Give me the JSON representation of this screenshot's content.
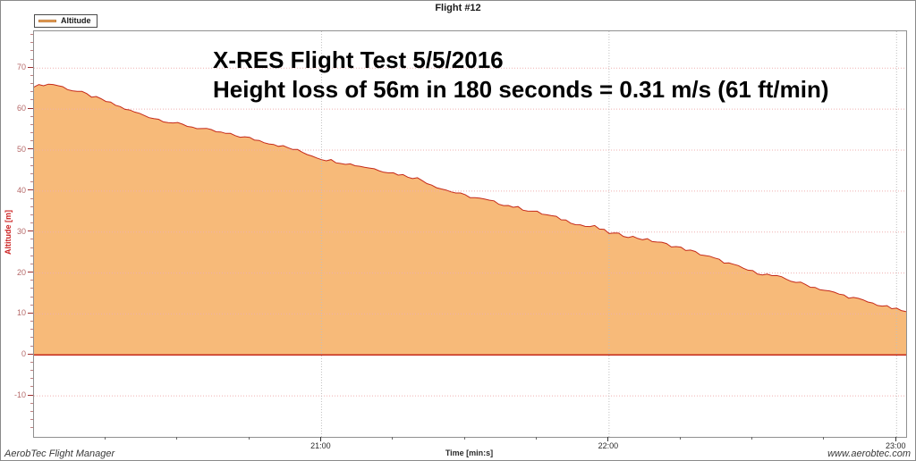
{
  "window": {
    "title": "Flight #12"
  },
  "legend": {
    "label": "Altitude"
  },
  "annotation": {
    "line1": "X-RES Flight Test 5/5/2016",
    "line2": "Height loss of 56m in 180 seconds = 0.31 m/s (61 ft/min)"
  },
  "footer": {
    "left": "AerobTec Flight Manager",
    "right": "www.aerobtec.com"
  },
  "colors": {
    "area_fill": "#F7BA79",
    "series_line": "#C52A1A",
    "h_grid": "#EFAFAF",
    "v_grid": "#BFBFBF",
    "y_tick": "#A03030",
    "y_tick_minor": "#C08080",
    "x_tick": "#333333",
    "y_label_text": "#B56A6A",
    "axis_title_red": "#CC2222"
  },
  "chart_data": {
    "type": "area",
    "title": "Flight #12",
    "xlabel": "Time [min:s]",
    "ylabel": "Altitude [m]",
    "legend_position": "top-left",
    "grid": "dotted",
    "x_start_label": "20:00",
    "x_end_label": "23:02",
    "x_total_seconds": 182,
    "x_major_tick_seconds": [
      60,
      120,
      180
    ],
    "x_major_tick_labels": [
      "21:00",
      "22:00",
      "23:00"
    ],
    "x_minor_tick_interval_seconds": 15,
    "ylim": [
      -20,
      79
    ],
    "y_major_ticks": [
      70,
      60,
      50,
      40,
      30,
      20,
      10,
      0,
      -10
    ],
    "y_minor_tick_interval": 2,
    "series": [
      {
        "name": "Altitude",
        "baseline": 0,
        "t_seconds": [
          0,
          2,
          4,
          6,
          8,
          10,
          15,
          20,
          25,
          30,
          35,
          40,
          45,
          50,
          55,
          60,
          65,
          70,
          75,
          80,
          85,
          90,
          95,
          100,
          105,
          110,
          115,
          117,
          120,
          125,
          130,
          135,
          140,
          145,
          150,
          155,
          160,
          165,
          170,
          175,
          180,
          182
        ],
        "altitude_m": [
          65.4,
          66.0,
          66.1,
          65.4,
          64.6,
          64.0,
          61.9,
          59.6,
          57.8,
          56.4,
          55.2,
          54.0,
          52.9,
          51.5,
          49.9,
          47.9,
          46.8,
          45.7,
          44.4,
          43.1,
          40.6,
          38.9,
          37.6,
          36.2,
          34.8,
          33.2,
          31.4,
          31.3,
          29.8,
          28.8,
          27.6,
          26.1,
          24.3,
          22.3,
          20.3,
          19.1,
          17.5,
          15.8,
          14.2,
          12.6,
          11.1,
          10.6
        ]
      }
    ],
    "summary": {
      "start_altitude_m": 66,
      "end_altitude_m": 10,
      "height_loss_m": 56,
      "duration_s": 180,
      "sink_rate_ms": 0.31,
      "sink_rate_ftmin": 61
    }
  }
}
